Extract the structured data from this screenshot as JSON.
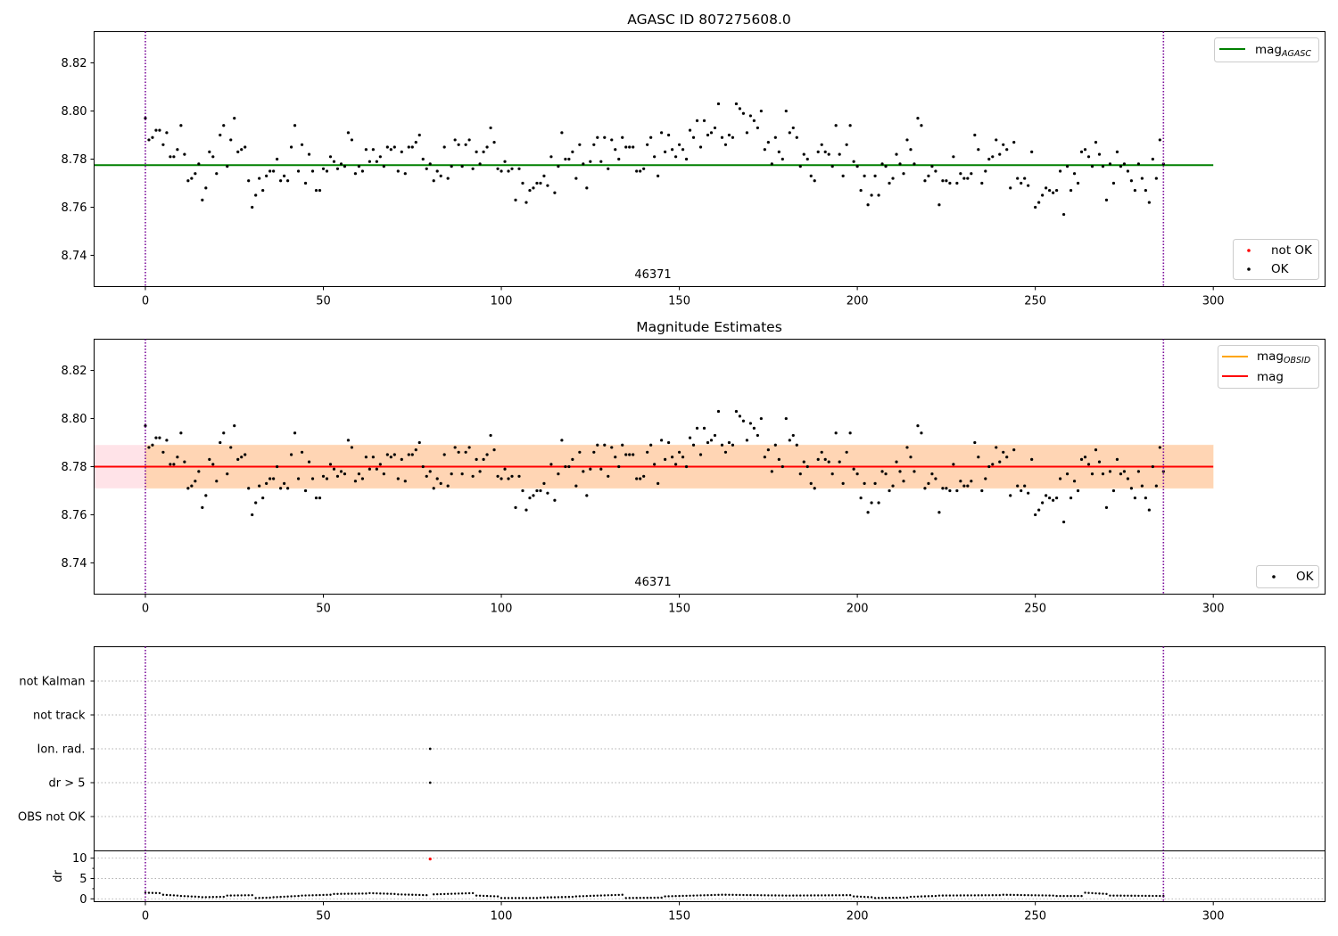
{
  "chart_data": [
    {
      "type": "scatter",
      "title": "AGASC ID 807275608.0",
      "xlim": [
        -14.4,
        331.4
      ],
      "ylim": [
        8.727,
        8.833
      ],
      "xticks": [
        0,
        50,
        100,
        150,
        200,
        250,
        300
      ],
      "yticks": [
        8.74,
        8.76,
        8.78,
        8.8,
        8.82
      ],
      "x_range": [
        0,
        286
      ],
      "vlines": [
        0,
        286
      ],
      "hline": {
        "name": "mag",
        "subscript": "AGASC",
        "y": 8.7775,
        "x": [
          -14.4,
          300
        ],
        "color": "#008000"
      },
      "annotation": {
        "text": "46371",
        "x": 143
      },
      "legend_lines": {
        "position": "upper right",
        "entries": [
          {
            "label": "mag",
            "subscript": "AGASC",
            "color": "#008000"
          }
        ]
      },
      "legend_points": {
        "position": "lower right",
        "entries": [
          {
            "label": "not OK",
            "color": "#ff0000"
          },
          {
            "label": "OK",
            "color": "#000000"
          }
        ]
      },
      "series": [
        {
          "name": "OK",
          "color": "#000000",
          "ref": "mag_series"
        }
      ]
    },
    {
      "type": "scatter",
      "title": "Magnitude Estimates",
      "xlim": [
        -14.4,
        331.4
      ],
      "ylim": [
        8.727,
        8.833
      ],
      "xticks": [
        0,
        50,
        100,
        150,
        200,
        250,
        300
      ],
      "yticks": [
        8.74,
        8.76,
        8.78,
        8.8,
        8.82
      ],
      "vlines": [
        0,
        286
      ],
      "hline": {
        "name": "mag",
        "y": 8.78,
        "x": [
          -14.4,
          300
        ],
        "color": "#ff0000"
      },
      "band_mag": {
        "low": 8.771,
        "high": 8.789,
        "x": [
          -14.4,
          300
        ],
        "color": "#ffc0cb"
      },
      "band_obsid": {
        "low": 8.771,
        "high": 8.789,
        "x": [
          0,
          300
        ],
        "color": "#ffa500"
      },
      "annotation": {
        "text": "46371",
        "x": 143
      },
      "legend_lines": {
        "position": "upper right",
        "entries": [
          {
            "label": "mag",
            "subscript": "OBSID",
            "color": "#ffa500"
          },
          {
            "label": "mag",
            "color": "#ff0000"
          }
        ]
      },
      "legend_points": {
        "position": "lower right",
        "entries": [
          {
            "label": "OK",
            "color": "#000000"
          }
        ]
      },
      "series": [
        {
          "name": "OK",
          "color": "#000000",
          "ref": "mag_series"
        }
      ]
    },
    {
      "type": "scatter",
      "title": "",
      "categories": [
        "not Kalman",
        "not track",
        "Ion. rad.",
        "dr > 5",
        "OBS not OK"
      ],
      "flags": [
        {
          "category": "Ion. rad.",
          "x": 80
        },
        {
          "category": "dr > 5",
          "x": 80
        }
      ],
      "xlim": [
        -14.4,
        331.4
      ],
      "vlines": [
        0,
        286
      ]
    },
    {
      "type": "scatter",
      "title": "",
      "ylabel": "dr",
      "ylim": [
        -0.7,
        11.8
      ],
      "yticks": [
        0,
        5,
        10
      ],
      "xlim": [
        -14.4,
        331.4
      ],
      "xticks": [
        0,
        50,
        100,
        150,
        200,
        250,
        300
      ],
      "vlines": [
        0,
        286
      ],
      "outlier": {
        "x": 80,
        "y": 9.8,
        "color": "#ff0000"
      },
      "dr_segments": [
        {
          "x0": 0,
          "x1": 4,
          "y0": 1.5,
          "y1": 1.4
        },
        {
          "x0": 5,
          "x1": 9,
          "y0": 1.0,
          "y1": 0.8
        },
        {
          "x0": 10,
          "x1": 15,
          "y0": 0.7,
          "y1": 0.5
        },
        {
          "x0": 16,
          "x1": 22,
          "y0": 0.4,
          "y1": 0.5
        },
        {
          "x0": 23,
          "x1": 30,
          "y0": 0.8,
          "y1": 0.9
        },
        {
          "x0": 31,
          "x1": 35,
          "y0": 0.2,
          "y1": 0.3
        },
        {
          "x0": 36,
          "x1": 43,
          "y0": 0.4,
          "y1": 0.7
        },
        {
          "x0": 44,
          "x1": 52,
          "y0": 0.8,
          "y1": 1.0
        },
        {
          "x0": 53,
          "x1": 62,
          "y0": 1.2,
          "y1": 1.3
        },
        {
          "x0": 63,
          "x1": 70,
          "y0": 1.4,
          "y1": 1.2
        },
        {
          "x0": 71,
          "x1": 79,
          "y0": 1.1,
          "y1": 0.9
        },
        {
          "x0": 81,
          "x1": 92,
          "y0": 1.1,
          "y1": 1.4
        },
        {
          "x0": 93,
          "x1": 99,
          "y0": 0.8,
          "y1": 0.6
        },
        {
          "x0": 100,
          "x1": 110,
          "y0": 0.2,
          "y1": 0.2
        },
        {
          "x0": 111,
          "x1": 120,
          "y0": 0.3,
          "y1": 0.5
        },
        {
          "x0": 121,
          "x1": 134,
          "y0": 0.6,
          "y1": 1.0
        },
        {
          "x0": 135,
          "x1": 145,
          "y0": 0.2,
          "y1": 0.3
        },
        {
          "x0": 146,
          "x1": 162,
          "y0": 0.6,
          "y1": 1.0
        },
        {
          "x0": 163,
          "x1": 180,
          "y0": 1.0,
          "y1": 0.8
        },
        {
          "x0": 181,
          "x1": 198,
          "y0": 0.8,
          "y1": 0.9
        },
        {
          "x0": 199,
          "x1": 204,
          "y0": 0.6,
          "y1": 0.4
        },
        {
          "x0": 205,
          "x1": 214,
          "y0": 0.2,
          "y1": 0.3
        },
        {
          "x0": 215,
          "x1": 222,
          "y0": 0.5,
          "y1": 0.7
        },
        {
          "x0": 223,
          "x1": 240,
          "y0": 0.8,
          "y1": 0.9
        },
        {
          "x0": 241,
          "x1": 255,
          "y0": 1.0,
          "y1": 0.8
        },
        {
          "x0": 256,
          "x1": 263,
          "y0": 0.7,
          "y1": 0.7
        },
        {
          "x0": 264,
          "x1": 270,
          "y0": 1.5,
          "y1": 1.2
        },
        {
          "x0": 271,
          "x1": 286,
          "y0": 0.8,
          "y1": 0.7
        }
      ]
    }
  ],
  "mag_series": [
    [
      0,
      8.797
    ],
    [
      1,
      8.788
    ],
    [
      2,
      8.789
    ],
    [
      3,
      8.792
    ],
    [
      4,
      8.792
    ],
    [
      5,
      8.786
    ],
    [
      6,
      8.791
    ],
    [
      7,
      8.781
    ],
    [
      8,
      8.781
    ],
    [
      9,
      8.784
    ],
    [
      10,
      8.794
    ],
    [
      11,
      8.782
    ],
    [
      12,
      8.771
    ],
    [
      13,
      8.772
    ],
    [
      14,
      8.774
    ],
    [
      15,
      8.778
    ],
    [
      16,
      8.763
    ],
    [
      17,
      8.768
    ],
    [
      18,
      8.783
    ],
    [
      19,
      8.781
    ],
    [
      20,
      8.774
    ],
    [
      21,
      8.79
    ],
    [
      22,
      8.794
    ],
    [
      23,
      8.777
    ],
    [
      24,
      8.788
    ],
    [
      25,
      8.797
    ],
    [
      26,
      8.783
    ],
    [
      27,
      8.784
    ],
    [
      28,
      8.785
    ],
    [
      29,
      8.771
    ],
    [
      30,
      8.76
    ],
    [
      31,
      8.765
    ],
    [
      32,
      8.772
    ],
    [
      33,
      8.767
    ],
    [
      34,
      8.773
    ],
    [
      35,
      8.775
    ],
    [
      36,
      8.775
    ],
    [
      37,
      8.78
    ],
    [
      38,
      8.771
    ],
    [
      39,
      8.773
    ],
    [
      40,
      8.771
    ],
    [
      41,
      8.785
    ],
    [
      42,
      8.794
    ],
    [
      43,
      8.775
    ],
    [
      44,
      8.786
    ],
    [
      45,
      8.77
    ],
    [
      46,
      8.782
    ],
    [
      47,
      8.775
    ],
    [
      48,
      8.767
    ],
    [
      49,
      8.767
    ],
    [
      50,
      8.776
    ],
    [
      51,
      8.775
    ],
    [
      52,
      8.781
    ],
    [
      53,
      8.779
    ],
    [
      54,
      8.776
    ],
    [
      55,
      8.778
    ],
    [
      56,
      8.777
    ],
    [
      57,
      8.791
    ],
    [
      58,
      8.788
    ],
    [
      59,
      8.774
    ],
    [
      60,
      8.777
    ],
    [
      61,
      8.775
    ],
    [
      62,
      8.784
    ],
    [
      63,
      8.779
    ],
    [
      64,
      8.784
    ],
    [
      65,
      8.779
    ],
    [
      66,
      8.781
    ],
    [
      67,
      8.777
    ],
    [
      68,
      8.785
    ],
    [
      69,
      8.784
    ],
    [
      70,
      8.785
    ],
    [
      71,
      8.775
    ],
    [
      72,
      8.783
    ],
    [
      73,
      8.774
    ],
    [
      74,
      8.785
    ],
    [
      75,
      8.785
    ],
    [
      76,
      8.787
    ],
    [
      77,
      8.79
    ],
    [
      78,
      8.78
    ],
    [
      79,
      8.776
    ],
    [
      80,
      8.778
    ],
    [
      81,
      8.771
    ],
    [
      82,
      8.775
    ],
    [
      83,
      8.773
    ],
    [
      84,
      8.785
    ],
    [
      85,
      8.772
    ],
    [
      86,
      8.777
    ],
    [
      87,
      8.788
    ],
    [
      88,
      8.786
    ],
    [
      89,
      8.777
    ],
    [
      90,
      8.786
    ],
    [
      91,
      8.788
    ],
    [
      92,
      8.776
    ],
    [
      93,
      8.783
    ],
    [
      94,
      8.778
    ],
    [
      95,
      8.783
    ],
    [
      96,
      8.785
    ],
    [
      97,
      8.793
    ],
    [
      98,
      8.787
    ],
    [
      99,
      8.776
    ],
    [
      100,
      8.775
    ],
    [
      101,
      8.779
    ],
    [
      102,
      8.775
    ],
    [
      103,
      8.776
    ],
    [
      104,
      8.763
    ],
    [
      105,
      8.776
    ],
    [
      106,
      8.77
    ],
    [
      107,
      8.762
    ],
    [
      108,
      8.767
    ],
    [
      109,
      8.768
    ],
    [
      110,
      8.77
    ],
    [
      111,
      8.77
    ],
    [
      112,
      8.773
    ],
    [
      113,
      8.769
    ],
    [
      114,
      8.781
    ],
    [
      115,
      8.766
    ],
    [
      116,
      8.777
    ],
    [
      117,
      8.791
    ],
    [
      118,
      8.78
    ],
    [
      119,
      8.78
    ],
    [
      120,
      8.783
    ],
    [
      121,
      8.772
    ],
    [
      122,
      8.786
    ],
    [
      123,
      8.778
    ],
    [
      124,
      8.768
    ],
    [
      125,
      8.779
    ],
    [
      126,
      8.786
    ],
    [
      127,
      8.789
    ],
    [
      128,
      8.779
    ],
    [
      129,
      8.789
    ],
    [
      130,
      8.776
    ],
    [
      131,
      8.788
    ],
    [
      132,
      8.784
    ],
    [
      133,
      8.78
    ],
    [
      134,
      8.789
    ],
    [
      135,
      8.785
    ],
    [
      136,
      8.785
    ],
    [
      137,
      8.785
    ],
    [
      138,
      8.775
    ],
    [
      139,
      8.775
    ],
    [
      140,
      8.776
    ],
    [
      141,
      8.786
    ],
    [
      142,
      8.789
    ],
    [
      143,
      8.781
    ],
    [
      144,
      8.773
    ],
    [
      145,
      8.791
    ],
    [
      146,
      8.783
    ],
    [
      147,
      8.79
    ],
    [
      148,
      8.784
    ],
    [
      149,
      8.781
    ],
    [
      150,
      8.786
    ],
    [
      151,
      8.784
    ],
    [
      152,
      8.78
    ],
    [
      153,
      8.792
    ],
    [
      154,
      8.789
    ],
    [
      155,
      8.796
    ],
    [
      156,
      8.785
    ],
    [
      157,
      8.796
    ],
    [
      158,
      8.79
    ],
    [
      159,
      8.791
    ],
    [
      160,
      8.793
    ],
    [
      161,
      8.803
    ],
    [
      162,
      8.789
    ],
    [
      163,
      8.786
    ],
    [
      164,
      8.79
    ],
    [
      165,
      8.789
    ],
    [
      166,
      8.803
    ],
    [
      167,
      8.801
    ],
    [
      168,
      8.799
    ],
    [
      169,
      8.791
    ],
    [
      170,
      8.798
    ],
    [
      171,
      8.796
    ],
    [
      172,
      8.793
    ],
    [
      173,
      8.8
    ],
    [
      174,
      8.784
    ],
    [
      175,
      8.787
    ],
    [
      176,
      8.778
    ],
    [
      177,
      8.789
    ],
    [
      178,
      8.783
    ],
    [
      179,
      8.78
    ],
    [
      180,
      8.8
    ],
    [
      181,
      8.791
    ],
    [
      182,
      8.793
    ],
    [
      183,
      8.789
    ],
    [
      184,
      8.777
    ],
    [
      185,
      8.782
    ],
    [
      186,
      8.78
    ],
    [
      187,
      8.773
    ],
    [
      188,
      8.771
    ],
    [
      189,
      8.783
    ],
    [
      190,
      8.786
    ],
    [
      191,
      8.783
    ],
    [
      192,
      8.782
    ],
    [
      193,
      8.777
    ],
    [
      194,
      8.794
    ],
    [
      195,
      8.782
    ],
    [
      196,
      8.773
    ],
    [
      197,
      8.786
    ],
    [
      198,
      8.794
    ],
    [
      199,
      8.779
    ],
    [
      200,
      8.777
    ],
    [
      201,
      8.767
    ],
    [
      202,
      8.773
    ],
    [
      203,
      8.761
    ],
    [
      204,
      8.765
    ],
    [
      205,
      8.773
    ],
    [
      206,
      8.765
    ],
    [
      207,
      8.778
    ],
    [
      208,
      8.777
    ],
    [
      209,
      8.77
    ],
    [
      210,
      8.772
    ],
    [
      211,
      8.782
    ],
    [
      212,
      8.778
    ],
    [
      213,
      8.774
    ],
    [
      214,
      8.788
    ],
    [
      215,
      8.784
    ],
    [
      216,
      8.778
    ],
    [
      217,
      8.797
    ],
    [
      218,
      8.794
    ],
    [
      219,
      8.771
    ],
    [
      220,
      8.773
    ],
    [
      221,
      8.777
    ],
    [
      222,
      8.775
    ],
    [
      223,
      8.761
    ],
    [
      224,
      8.771
    ],
    [
      225,
      8.771
    ],
    [
      226,
      8.77
    ],
    [
      227,
      8.781
    ],
    [
      228,
      8.77
    ],
    [
      229,
      8.774
    ],
    [
      230,
      8.772
    ],
    [
      231,
      8.772
    ],
    [
      232,
      8.774
    ],
    [
      233,
      8.79
    ],
    [
      234,
      8.784
    ],
    [
      235,
      8.77
    ],
    [
      236,
      8.775
    ],
    [
      237,
      8.78
    ],
    [
      238,
      8.781
    ],
    [
      239,
      8.788
    ],
    [
      240,
      8.782
    ],
    [
      241,
      8.786
    ],
    [
      242,
      8.784
    ],
    [
      243,
      8.768
    ],
    [
      244,
      8.787
    ],
    [
      245,
      8.772
    ],
    [
      246,
      8.77
    ],
    [
      247,
      8.772
    ],
    [
      248,
      8.769
    ],
    [
      249,
      8.783
    ],
    [
      250,
      8.76
    ],
    [
      251,
      8.762
    ],
    [
      252,
      8.765
    ],
    [
      253,
      8.768
    ],
    [
      254,
      8.767
    ],
    [
      255,
      8.766
    ],
    [
      256,
      8.767
    ],
    [
      257,
      8.775
    ],
    [
      258,
      8.757
    ],
    [
      259,
      8.777
    ],
    [
      260,
      8.767
    ],
    [
      261,
      8.774
    ],
    [
      262,
      8.77
    ],
    [
      263,
      8.783
    ],
    [
      264,
      8.784
    ],
    [
      265,
      8.781
    ],
    [
      266,
      8.777
    ],
    [
      267,
      8.787
    ],
    [
      268,
      8.782
    ],
    [
      269,
      8.777
    ],
    [
      270,
      8.763
    ],
    [
      271,
      8.778
    ],
    [
      272,
      8.77
    ],
    [
      273,
      8.783
    ],
    [
      274,
      8.777
    ],
    [
      275,
      8.778
    ],
    [
      276,
      8.775
    ],
    [
      277,
      8.771
    ],
    [
      278,
      8.767
    ],
    [
      279,
      8.778
    ],
    [
      280,
      8.772
    ],
    [
      281,
      8.767
    ],
    [
      282,
      8.762
    ],
    [
      283,
      8.78
    ],
    [
      284,
      8.772
    ],
    [
      285,
      8.788
    ],
    [
      286,
      8.778
    ]
  ]
}
